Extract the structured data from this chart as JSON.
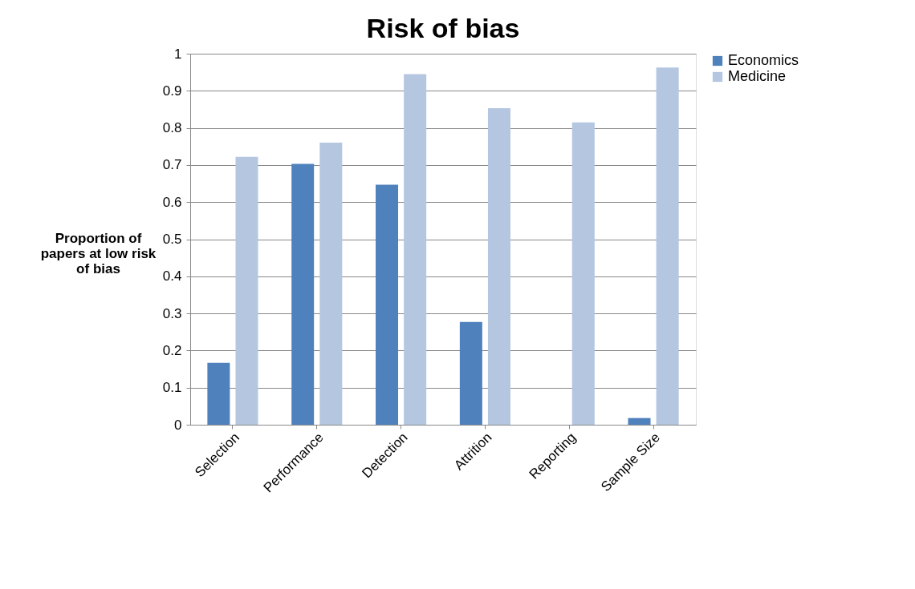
{
  "chart_data": {
    "type": "bar",
    "title": "Risk of bias",
    "ylabel": "Proportion of papers at low risk of bias",
    "categories": [
      "Selection",
      "Performance",
      "Detection",
      "Attrition",
      "Reporting",
      "Sample Size"
    ],
    "series": [
      {
        "name": "Economics",
        "color": "#4f81bd",
        "values": [
          0.167,
          0.703,
          0.647,
          0.277,
          0,
          0.018
        ]
      },
      {
        "name": "Medicine",
        "color": "#b4c6e0",
        "values": [
          0.722,
          0.76,
          0.945,
          0.853,
          0.815,
          0.963
        ]
      }
    ],
    "ylim": [
      0,
      1
    ],
    "yticks": [
      0,
      0.1,
      0.2,
      0.3,
      0.4,
      0.5,
      0.6,
      0.7,
      0.8,
      0.9,
      1
    ],
    "grid": "y",
    "legend": "right"
  }
}
